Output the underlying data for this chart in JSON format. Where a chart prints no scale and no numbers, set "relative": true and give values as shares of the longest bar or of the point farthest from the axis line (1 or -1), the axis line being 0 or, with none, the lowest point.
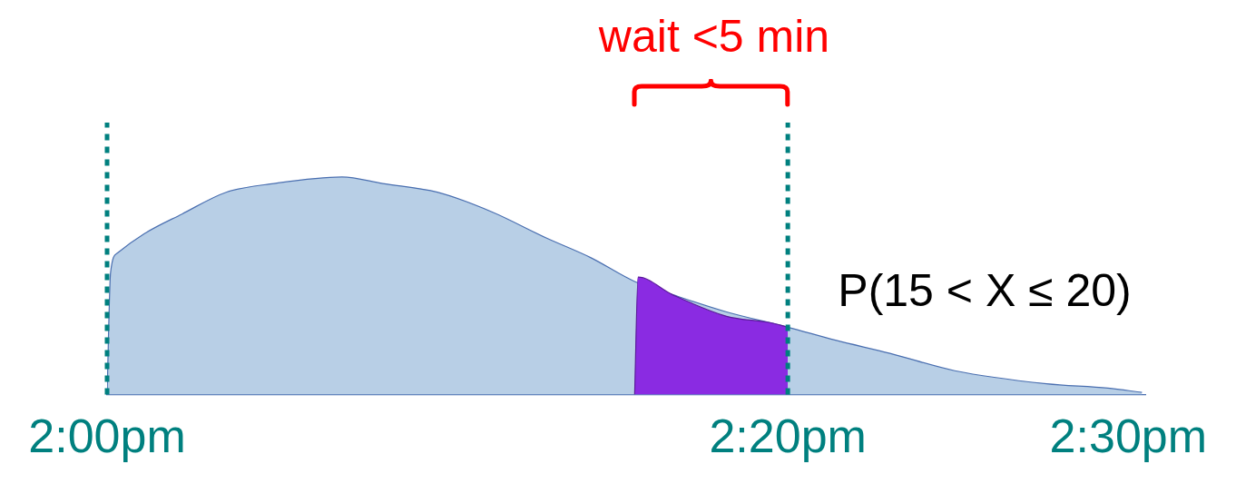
{
  "chart_data": {
    "type": "area",
    "relative": true,
    "tick_labels": "x",
    "grid": false,
    "legend": false,
    "xlim": [
      14,
      14.5083
    ],
    "xticks": [
      {
        "value": 14,
        "label": "2:00pm"
      },
      {
        "value": 14.3333,
        "label": "2:20pm"
      },
      {
        "value": 14.5,
        "label": "2:30pm"
      }
    ],
    "series": [
      {
        "color": "#b8cfe6",
        "x": [
          14,
          14.0017,
          14.005,
          14.0183,
          14.0367,
          14.0583,
          14.0817,
          14.115,
          14.135,
          14.1617,
          14.1883,
          14.215,
          14.2367,
          14.2583,
          14.2767,
          14.3033,
          14.3333,
          14.3567,
          14.3833,
          14.415,
          14.46,
          14.49,
          14.5067
        ],
        "values": [
          0,
          0.56,
          0.65,
          0.74,
          0.83,
          0.93,
          0.97,
          1,
          0.97,
          0.93,
          0.84,
          0.72,
          0.63,
          0.52,
          0.46,
          0.38,
          0.31,
          0.25,
          0.19,
          0.11,
          0.05,
          0.03,
          0.01
        ]
      },
      {
        "color": "#8a2be2",
        "x": [
          14.2583,
          14.26,
          14.2767,
          14.3033,
          14.325,
          14.3333
        ],
        "values": [
          0,
          0.54,
          0.46,
          0.36,
          0.33,
          0.31
        ]
      }
    ],
    "ref_lines": [
      {
        "axis": "x",
        "value": 14,
        "color": "#00807f",
        "line_style": "dashed"
      },
      {
        "axis": "x",
        "value": 14.3333,
        "color": "#00807f",
        "line_style": "dashed"
      }
    ],
    "annotations": [
      "wait <5 min",
      "P(15 < X ≤ 20)"
    ]
  }
}
